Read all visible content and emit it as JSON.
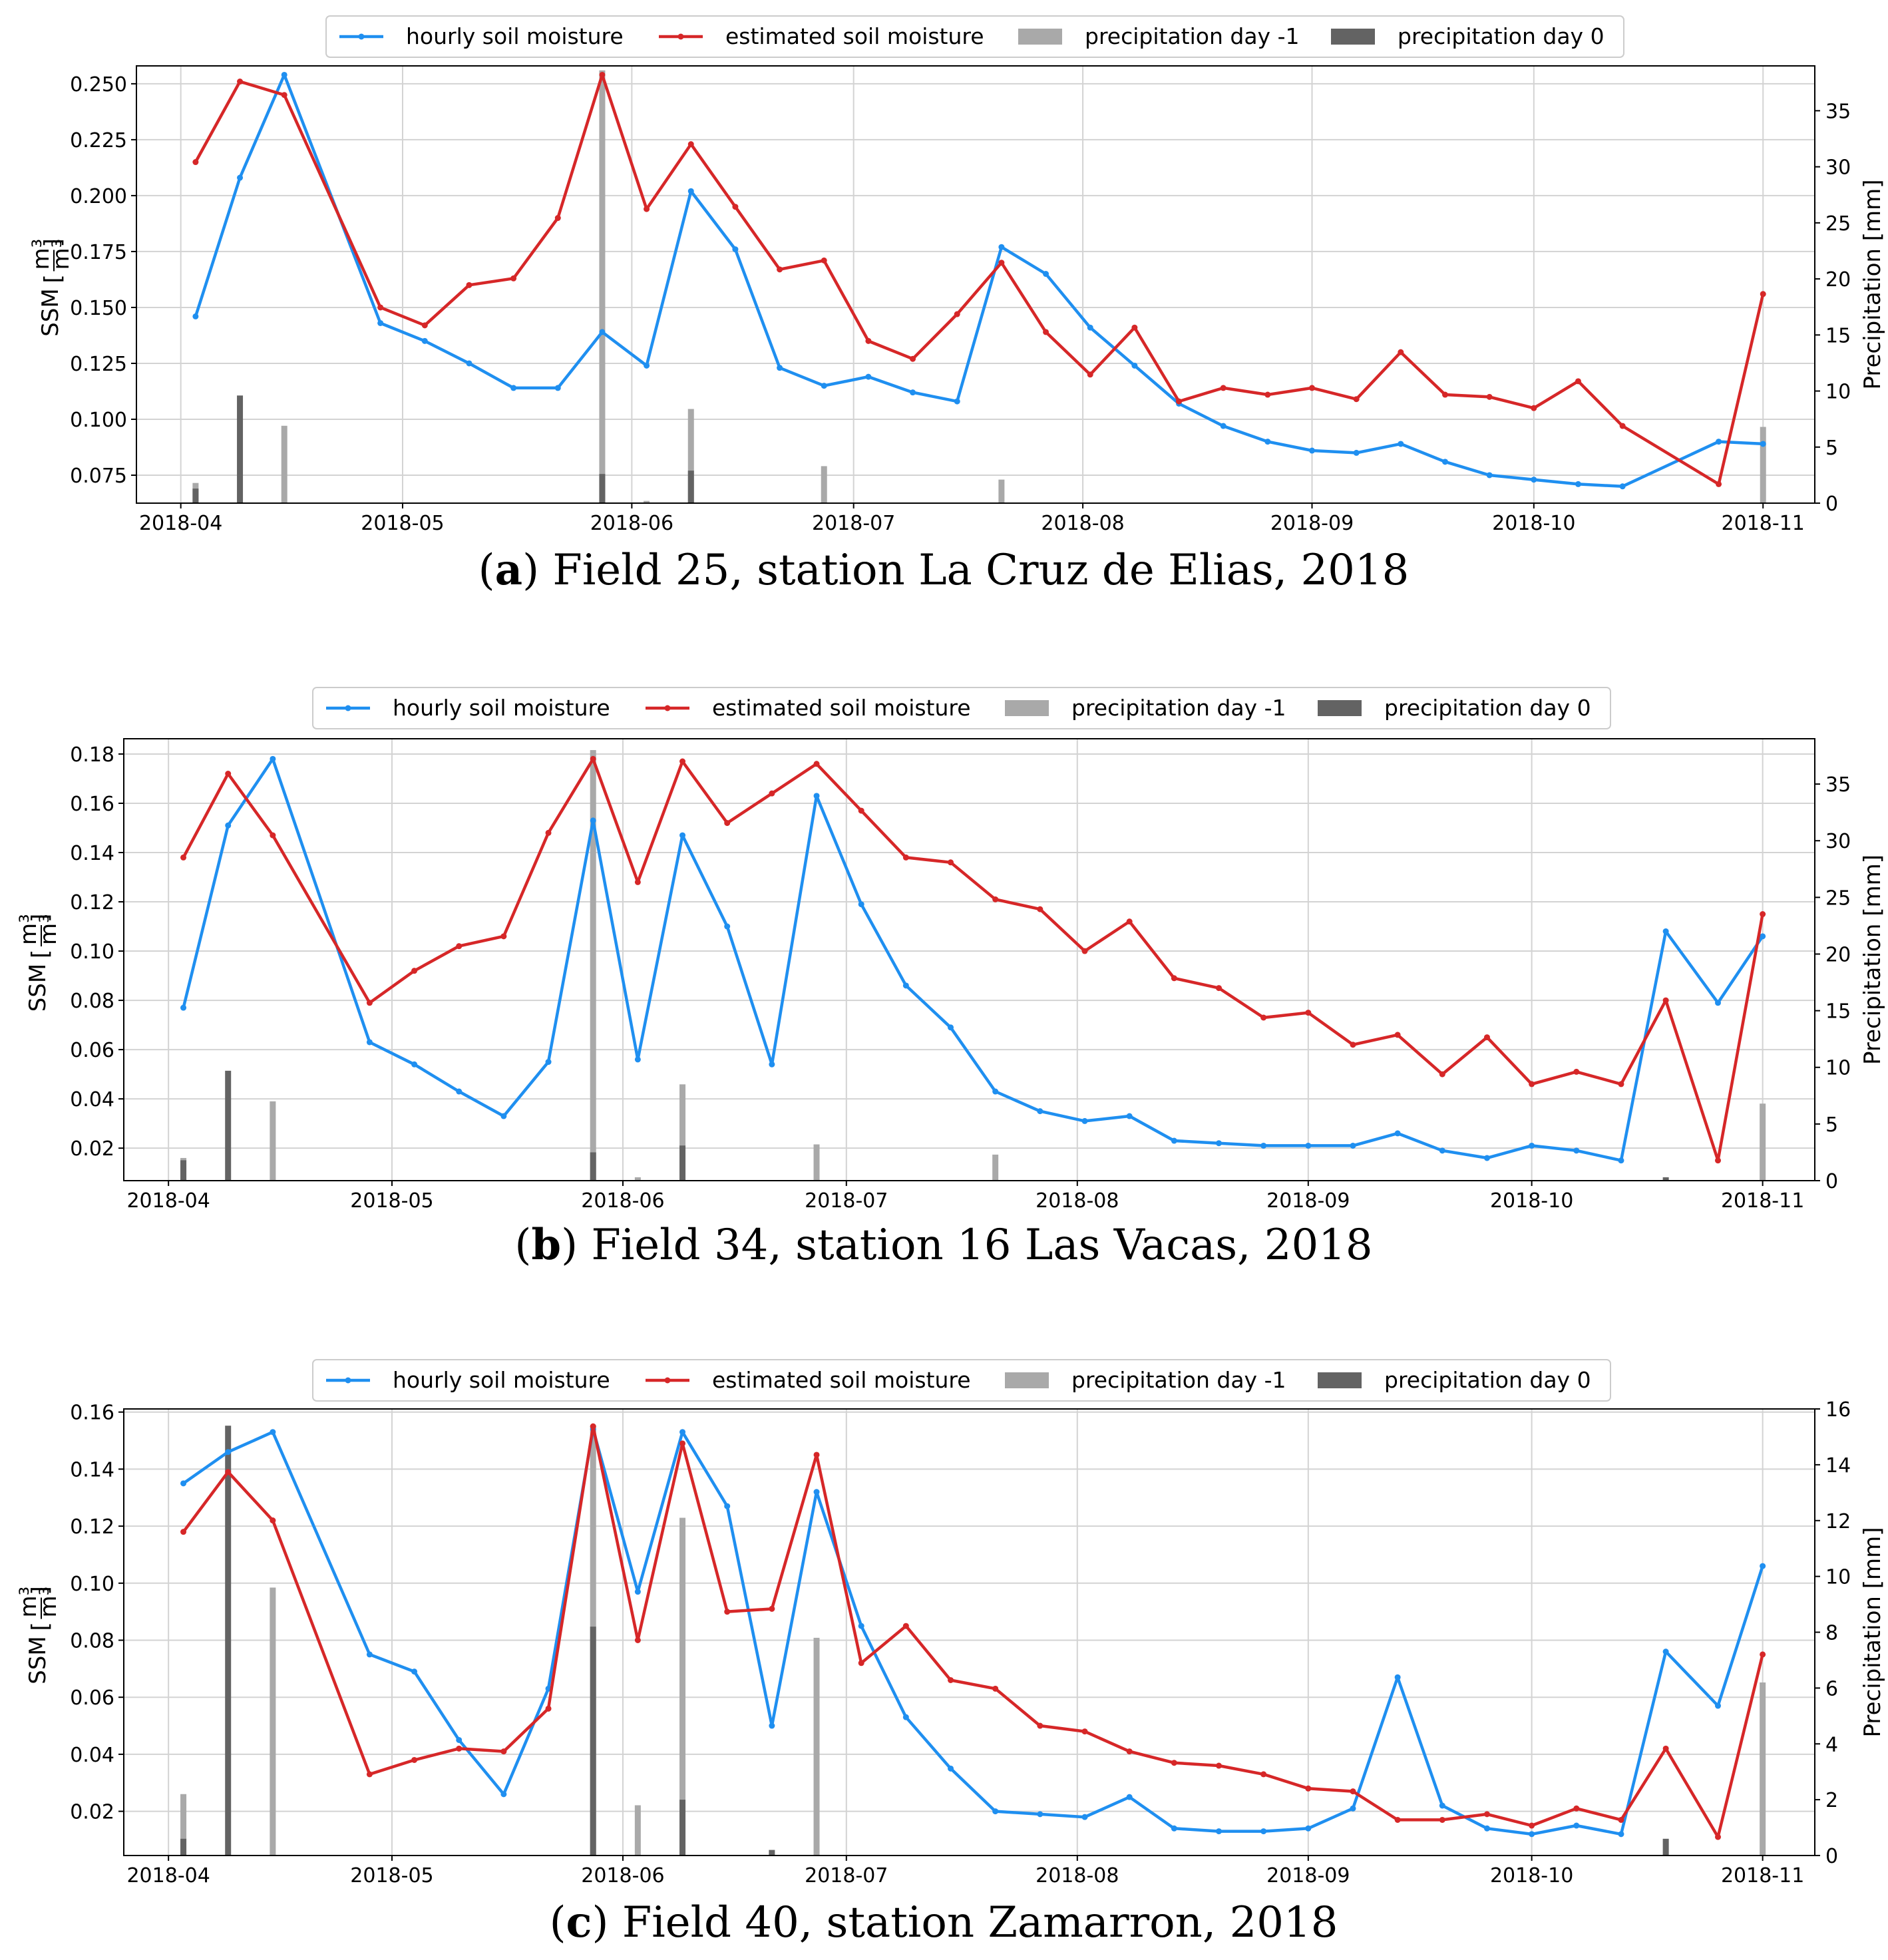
{
  "figure": {
    "colors": {
      "hourly": "#1f8ff0",
      "estimated": "#d62728",
      "precip_prev": "#a9a9a9",
      "precip_day0": "#636363",
      "grid": "#d3d3d3"
    }
  },
  "chart_data": [
    {
      "type": "line",
      "panel": "a",
      "caption": {
        "letter": "a",
        "text": "Field 25, station La Cruz de Elias, 2018"
      },
      "ylabel": "SSM",
      "unit": {
        "num": "m³",
        "den": "m³"
      },
      "y2label": "Precipitation [mm]",
      "legend": [
        "hourly soil moisture",
        "estimated soil moisture",
        "precipitation day -1",
        "precipitation day 0"
      ],
      "ylim": [
        0.0625,
        0.258
      ],
      "yticks": [
        "0.075",
        "0.100",
        "0.125",
        "0.150",
        "0.175",
        "0.200",
        "0.225",
        "0.250"
      ],
      "y2lim": [
        0,
        39
      ],
      "y2ticks": [
        "0",
        "5",
        "10",
        "15",
        "20",
        "25",
        "30",
        "35"
      ],
      "x_range": [
        "2018-03-26",
        "2018-11-08"
      ],
      "xticks": [
        "2018-04",
        "2018-05",
        "2018-06",
        "2018-07",
        "2018-08",
        "2018-09",
        "2018-10",
        "2018-11"
      ],
      "series": [
        {
          "name": "hourly soil moisture",
          "x": [
            "2018-04-03",
            "2018-04-09",
            "2018-04-15",
            "2018-04-28",
            "2018-05-04",
            "2018-05-10",
            "2018-05-16",
            "2018-05-22",
            "2018-05-28",
            "2018-06-03",
            "2018-06-09",
            "2018-06-15",
            "2018-06-21",
            "2018-06-27",
            "2018-07-03",
            "2018-07-09",
            "2018-07-15",
            "2018-07-21",
            "2018-07-27",
            "2018-08-02",
            "2018-08-08",
            "2018-08-14",
            "2018-08-20",
            "2018-08-26",
            "2018-09-01",
            "2018-09-07",
            "2018-09-13",
            "2018-09-19",
            "2018-09-25",
            "2018-10-01",
            "2018-10-07",
            "2018-10-13",
            "2018-10-26",
            "2018-11-01"
          ],
          "values": [
            0.146,
            0.208,
            0.254,
            0.143,
            0.135,
            0.125,
            0.114,
            0.114,
            0.139,
            0.124,
            0.202,
            0.176,
            0.123,
            0.115,
            0.119,
            0.112,
            0.108,
            0.177,
            0.165,
            0.141,
            0.124,
            0.107,
            0.097,
            0.09,
            0.086,
            0.085,
            0.089,
            0.081,
            0.075,
            0.073,
            0.071,
            0.07,
            0.09,
            0.089
          ]
        },
        {
          "name": "estimated soil moisture",
          "x": [
            "2018-04-03",
            "2018-04-09",
            "2018-04-15",
            "2018-04-28",
            "2018-05-04",
            "2018-05-10",
            "2018-05-16",
            "2018-05-22",
            "2018-05-28",
            "2018-06-03",
            "2018-06-09",
            "2018-06-15",
            "2018-06-21",
            "2018-06-27",
            "2018-07-03",
            "2018-07-09",
            "2018-07-15",
            "2018-07-21",
            "2018-07-27",
            "2018-08-02",
            "2018-08-08",
            "2018-08-14",
            "2018-08-20",
            "2018-08-26",
            "2018-09-01",
            "2018-09-07",
            "2018-09-13",
            "2018-09-19",
            "2018-09-25",
            "2018-10-01",
            "2018-10-07",
            "2018-10-13",
            "2018-10-26",
            "2018-11-01"
          ],
          "values": [
            0.215,
            0.251,
            0.245,
            0.15,
            0.142,
            0.16,
            0.163,
            0.19,
            0.254,
            0.194,
            0.223,
            0.195,
            0.167,
            0.171,
            0.135,
            0.127,
            0.147,
            0.17,
            0.139,
            0.12,
            0.141,
            0.108,
            0.114,
            0.111,
            0.114,
            0.109,
            0.13,
            0.111,
            0.11,
            0.105,
            0.117,
            0.097,
            0.071,
            0.156
          ]
        },
        {
          "name": "precipitation day -1",
          "axis": "right",
          "x": [
            "2018-04-03",
            "2018-04-15",
            "2018-05-28",
            "2018-06-03",
            "2018-06-09",
            "2018-06-27",
            "2018-07-21",
            "2018-11-01"
          ],
          "values": [
            1.8,
            6.9,
            38.6,
            0.2,
            8.4,
            3.3,
            2.1,
            6.8
          ]
        },
        {
          "name": "precipitation day 0",
          "axis": "right",
          "x": [
            "2018-04-03",
            "2018-04-09",
            "2018-05-28",
            "2018-06-09"
          ],
          "values": [
            1.3,
            9.6,
            2.6,
            2.9
          ]
        }
      ]
    },
    {
      "type": "line",
      "panel": "b",
      "caption": {
        "letter": "b",
        "text": "Field 34, station 16 Las Vacas, 2018"
      },
      "ylabel": "SSM",
      "unit": {
        "num": "m³",
        "den": "m³"
      },
      "y2label": "Precipitation [mm]",
      "legend": [
        "hourly soil moisture",
        "estimated soil moisture",
        "precipitation day -1",
        "precipitation day 0"
      ],
      "ylim": [
        0.0068,
        0.1862
      ],
      "yticks": [
        "0.02",
        "0.04",
        "0.06",
        "0.08",
        "0.10",
        "0.12",
        "0.14",
        "0.16",
        "0.18"
      ],
      "y2lim": [
        0,
        39
      ],
      "y2ticks": [
        "0",
        "5",
        "10",
        "15",
        "20",
        "25",
        "30",
        "35"
      ],
      "x_range": [
        "2018-03-26",
        "2018-11-08"
      ],
      "xticks": [
        "2018-04",
        "2018-05",
        "2018-06",
        "2018-07",
        "2018-08",
        "2018-09",
        "2018-10",
        "2018-11"
      ],
      "series": [
        {
          "name": "hourly soil moisture",
          "x": [
            "2018-04-03",
            "2018-04-09",
            "2018-04-15",
            "2018-04-28",
            "2018-05-04",
            "2018-05-10",
            "2018-05-16",
            "2018-05-22",
            "2018-05-28",
            "2018-06-03",
            "2018-06-09",
            "2018-06-15",
            "2018-06-21",
            "2018-06-27",
            "2018-07-03",
            "2018-07-09",
            "2018-07-15",
            "2018-07-21",
            "2018-07-27",
            "2018-08-02",
            "2018-08-08",
            "2018-08-14",
            "2018-08-20",
            "2018-08-26",
            "2018-09-01",
            "2018-09-07",
            "2018-09-13",
            "2018-09-19",
            "2018-09-25",
            "2018-10-01",
            "2018-10-07",
            "2018-10-13",
            "2018-10-19",
            "2018-10-26",
            "2018-11-01"
          ],
          "values": [
            0.077,
            0.151,
            0.178,
            0.063,
            0.054,
            0.043,
            0.033,
            0.055,
            0.153,
            0.056,
            0.147,
            0.11,
            0.054,
            0.163,
            0.119,
            0.086,
            0.069,
            0.043,
            0.035,
            0.031,
            0.033,
            0.023,
            0.022,
            0.021,
            0.021,
            0.021,
            0.026,
            0.019,
            0.016,
            0.021,
            0.019,
            0.015,
            0.108,
            0.079,
            0.106
          ]
        },
        {
          "name": "estimated soil moisture",
          "x": [
            "2018-04-03",
            "2018-04-09",
            "2018-04-15",
            "2018-04-28",
            "2018-05-04",
            "2018-05-10",
            "2018-05-16",
            "2018-05-22",
            "2018-05-28",
            "2018-06-03",
            "2018-06-09",
            "2018-06-15",
            "2018-06-21",
            "2018-06-27",
            "2018-07-03",
            "2018-07-09",
            "2018-07-15",
            "2018-07-21",
            "2018-07-27",
            "2018-08-02",
            "2018-08-08",
            "2018-08-14",
            "2018-08-20",
            "2018-08-26",
            "2018-09-01",
            "2018-09-07",
            "2018-09-13",
            "2018-09-19",
            "2018-09-25",
            "2018-10-01",
            "2018-10-07",
            "2018-10-13",
            "2018-10-19",
            "2018-10-26",
            "2018-11-01"
          ],
          "values": [
            0.138,
            0.172,
            0.147,
            0.079,
            0.092,
            0.102,
            0.106,
            0.148,
            0.178,
            0.128,
            0.177,
            0.152,
            0.164,
            0.176,
            0.157,
            0.138,
            0.136,
            0.121,
            0.117,
            0.1,
            0.112,
            0.089,
            0.085,
            0.073,
            0.075,
            0.062,
            0.066,
            0.05,
            0.065,
            0.046,
            0.051,
            0.046,
            0.08,
            0.015,
            0.115
          ]
        },
        {
          "name": "precipitation day -1",
          "axis": "right",
          "x": [
            "2018-04-03",
            "2018-04-15",
            "2018-05-28",
            "2018-06-03",
            "2018-06-09",
            "2018-06-27",
            "2018-07-21",
            "2018-11-01"
          ],
          "values": [
            2.0,
            7.0,
            38.0,
            0.3,
            8.5,
            3.2,
            2.3,
            6.8
          ]
        },
        {
          "name": "precipitation day 0",
          "axis": "right",
          "x": [
            "2018-04-03",
            "2018-04-09",
            "2018-05-28",
            "2018-06-09",
            "2018-10-19"
          ],
          "values": [
            1.8,
            9.7,
            2.5,
            3.1,
            0.3
          ]
        }
      ]
    },
    {
      "type": "line",
      "panel": "c",
      "caption": {
        "letter": "c",
        "text": "Field 40, station Zamarron, 2018"
      },
      "ylabel": "SSM",
      "unit": {
        "num": "m³",
        "den": "m³"
      },
      "y2label": "Precipitation [mm]",
      "legend": [
        "hourly soil moisture",
        "estimated soil moisture",
        "precipitation day -1",
        "precipitation day 0"
      ],
      "ylim": [
        0.0045,
        0.1611
      ],
      "yticks": [
        "0.02",
        "0.04",
        "0.06",
        "0.08",
        "0.10",
        "0.12",
        "0.14",
        "0.16"
      ],
      "y2lim": [
        0,
        16
      ],
      "y2ticks": [
        "0",
        "2",
        "4",
        "6",
        "8",
        "10",
        "12",
        "14",
        "16"
      ],
      "x_range": [
        "2018-03-26",
        "2018-11-08"
      ],
      "xticks": [
        "2018-04",
        "2018-05",
        "2018-06",
        "2018-07",
        "2018-08",
        "2018-09",
        "2018-10",
        "2018-11"
      ],
      "series": [
        {
          "name": "hourly soil moisture",
          "x": [
            "2018-04-03",
            "2018-04-09",
            "2018-04-15",
            "2018-04-28",
            "2018-05-04",
            "2018-05-10",
            "2018-05-16",
            "2018-05-22",
            "2018-05-28",
            "2018-06-03",
            "2018-06-09",
            "2018-06-15",
            "2018-06-21",
            "2018-06-27",
            "2018-07-03",
            "2018-07-09",
            "2018-07-15",
            "2018-07-21",
            "2018-07-27",
            "2018-08-02",
            "2018-08-08",
            "2018-08-14",
            "2018-08-20",
            "2018-08-26",
            "2018-09-01",
            "2018-09-07",
            "2018-09-13",
            "2018-09-19",
            "2018-09-25",
            "2018-10-01",
            "2018-10-07",
            "2018-10-13",
            "2018-10-19",
            "2018-10-26",
            "2018-11-01"
          ],
          "values": [
            0.135,
            0.146,
            0.153,
            0.075,
            0.069,
            0.045,
            0.026,
            0.063,
            0.154,
            0.097,
            0.153,
            0.127,
            0.05,
            0.132,
            0.085,
            0.053,
            0.035,
            0.02,
            0.019,
            0.018,
            0.025,
            0.014,
            0.013,
            0.013,
            0.014,
            0.021,
            0.067,
            0.022,
            0.014,
            0.012,
            0.015,
            0.012,
            0.076,
            0.057,
            0.106
          ]
        },
        {
          "name": "estimated soil moisture",
          "x": [
            "2018-04-03",
            "2018-04-09",
            "2018-04-15",
            "2018-04-28",
            "2018-05-04",
            "2018-05-10",
            "2018-05-16",
            "2018-05-22",
            "2018-05-28",
            "2018-06-03",
            "2018-06-09",
            "2018-06-15",
            "2018-06-21",
            "2018-06-27",
            "2018-07-03",
            "2018-07-09",
            "2018-07-15",
            "2018-07-21",
            "2018-07-27",
            "2018-08-02",
            "2018-08-08",
            "2018-08-14",
            "2018-08-20",
            "2018-08-26",
            "2018-09-01",
            "2018-09-07",
            "2018-09-13",
            "2018-09-19",
            "2018-09-25",
            "2018-10-01",
            "2018-10-07",
            "2018-10-13",
            "2018-10-19",
            "2018-10-26",
            "2018-11-01"
          ],
          "values": [
            0.118,
            0.139,
            0.122,
            0.033,
            0.038,
            0.042,
            0.041,
            0.056,
            0.155,
            0.08,
            0.149,
            0.09,
            0.091,
            0.145,
            0.072,
            0.085,
            0.066,
            0.063,
            0.05,
            0.048,
            0.041,
            0.037,
            0.036,
            0.033,
            0.028,
            0.027,
            0.017,
            0.017,
            0.019,
            0.015,
            0.021,
            0.017,
            0.042,
            0.011,
            0.075
          ]
        },
        {
          "name": "precipitation day -1",
          "axis": "right",
          "x": [
            "2018-04-03",
            "2018-04-15",
            "2018-05-28",
            "2018-06-03",
            "2018-06-09",
            "2018-06-27",
            "2018-11-01"
          ],
          "values": [
            2.2,
            9.6,
            15.4,
            1.8,
            12.1,
            7.8,
            6.2
          ]
        },
        {
          "name": "precipitation day 0",
          "axis": "right",
          "x": [
            "2018-04-03",
            "2018-04-09",
            "2018-05-28",
            "2018-06-09",
            "2018-06-21",
            "2018-10-19"
          ],
          "values": [
            0.6,
            15.4,
            8.2,
            2.0,
            0.2,
            0.6
          ]
        }
      ]
    }
  ]
}
